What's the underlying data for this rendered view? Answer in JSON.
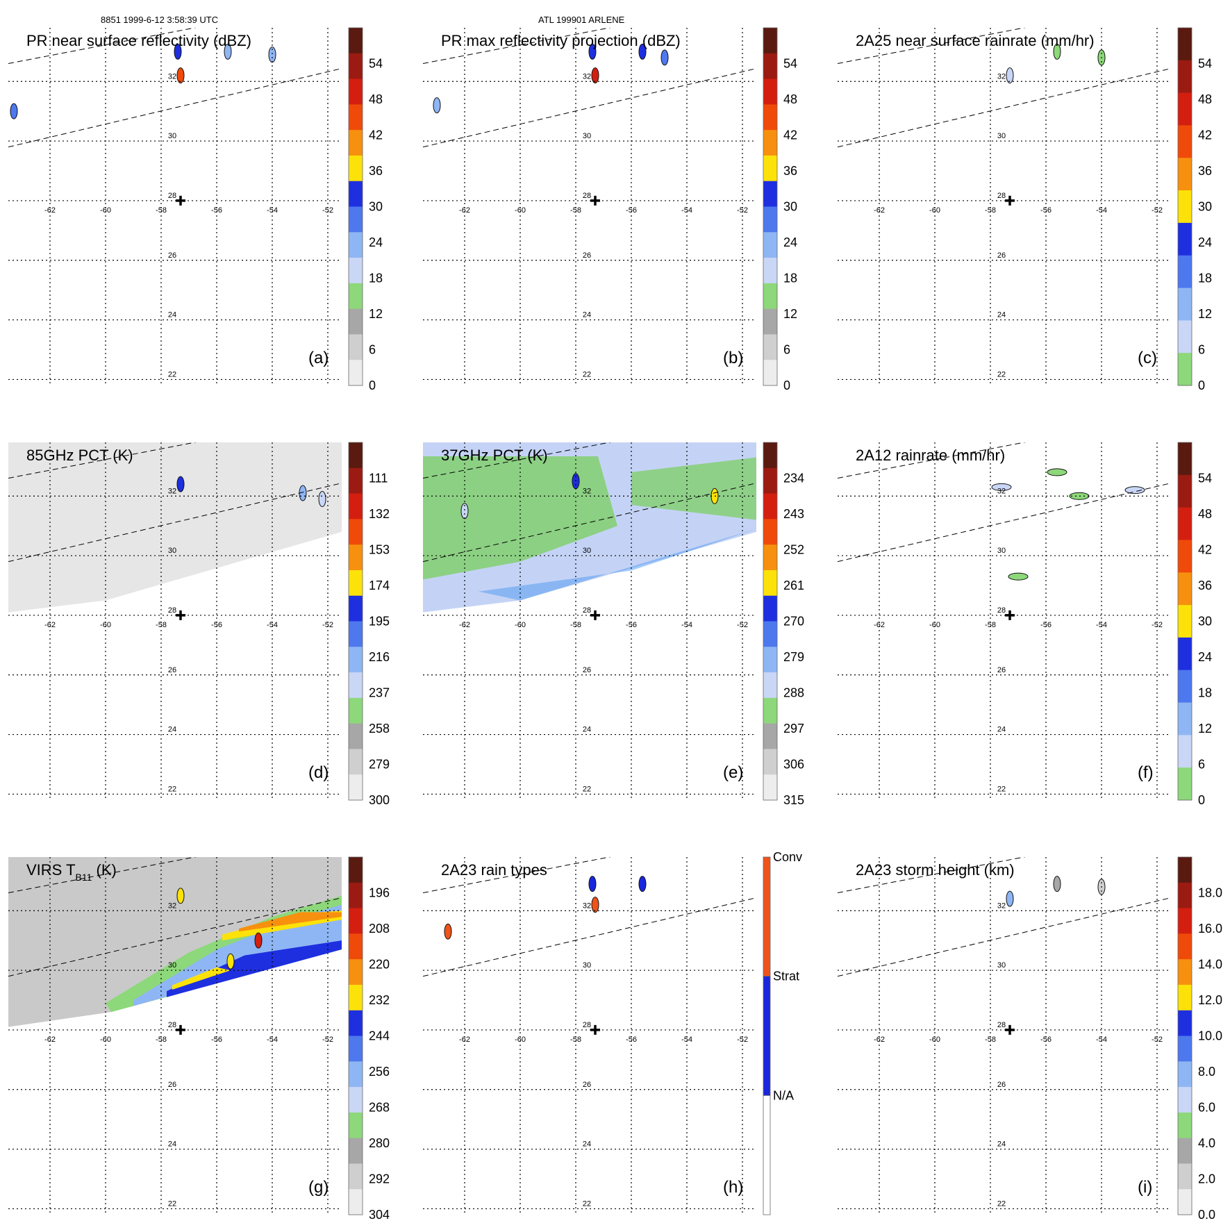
{
  "header": {
    "orbit_time": "8851 1999-6-12 3:58:39 UTC",
    "storm": "ATL 199901 ARLENE"
  },
  "chart_data": [
    {
      "type": "heatmap",
      "panel": "(a)",
      "title": "PR near surface reflectivity (dBZ)",
      "xlabel": "",
      "ylabel": "",
      "lon_ticks": [
        "-62",
        "-60",
        "-58",
        "-56",
        "-54",
        "-52"
      ],
      "lat_ticks": [
        "32",
        "30",
        "28",
        "26",
        "24",
        "22"
      ],
      "xlim": [
        -63.5,
        -51.5
      ],
      "ylim": [
        21.8,
        33.8
      ],
      "swath": "pr",
      "storm_center": {
        "lon": -57.3,
        "lat": 28.0
      },
      "colorbar": {
        "labels": [
          "54",
          "48",
          "42",
          "36",
          "30",
          "24",
          "18",
          "12",
          "6",
          "0"
        ],
        "colors": [
          "#5a1a10",
          "#9b1b12",
          "#d41f10",
          "#f04a0a",
          "#f7900e",
          "#fde20a",
          "#1e2fe0",
          "#4d78ee",
          "#8fb6f4",
          "#c9d6f6",
          "#8dd87a",
          "#a7a7a7",
          "#cfcfcf",
          "#ededed"
        ]
      },
      "data_features": [
        {
          "lon": -57.3,
          "lat": 32.2,
          "value": 45
        },
        {
          "lon": -57.4,
          "lat": 33.0,
          "value": 30
        },
        {
          "lon": -55.6,
          "lat": 33.0,
          "value": 24
        },
        {
          "lon": -54.0,
          "lat": 32.9,
          "value": 22
        },
        {
          "lon": -63.3,
          "lat": 31.0,
          "value": 28
        }
      ]
    },
    {
      "type": "heatmap",
      "panel": "(b)",
      "title": "PR max reflectivity projection (dBZ)",
      "xlabel": "",
      "ylabel": "",
      "lon_ticks": [
        "-62",
        "-60",
        "-58",
        "-56",
        "-54",
        "-52"
      ],
      "lat_ticks": [
        "32",
        "30",
        "28",
        "26",
        "24",
        "22"
      ],
      "xlim": [
        -63.5,
        -51.5
      ],
      "ylim": [
        21.8,
        33.8
      ],
      "swath": "pr",
      "storm_center": {
        "lon": -57.3,
        "lat": 28.0
      },
      "colorbar": {
        "labels": [
          "54",
          "48",
          "42",
          "36",
          "30",
          "24",
          "18",
          "12",
          "6",
          "0"
        ],
        "colors": [
          "#5a1a10",
          "#9b1b12",
          "#d41f10",
          "#f04a0a",
          "#f7900e",
          "#fde20a",
          "#1e2fe0",
          "#4d78ee",
          "#8fb6f4",
          "#c9d6f6",
          "#8dd87a",
          "#a7a7a7",
          "#cfcfcf",
          "#ededed"
        ]
      },
      "data_features": [
        {
          "lon": -57.3,
          "lat": 32.2,
          "value": 48
        },
        {
          "lon": -57.4,
          "lat": 33.0,
          "value": 33
        },
        {
          "lon": -55.6,
          "lat": 33.0,
          "value": 30
        },
        {
          "lon": -54.8,
          "lat": 32.8,
          "value": 26
        },
        {
          "lon": -63.0,
          "lat": 31.2,
          "value": 24
        }
      ]
    },
    {
      "type": "heatmap",
      "panel": "(c)",
      "title": "2A25 near surface rainrate (mm/hr)",
      "xlabel": "",
      "ylabel": "",
      "lon_ticks": [
        "-62",
        "-60",
        "-58",
        "-56",
        "-54",
        "-52"
      ],
      "lat_ticks": [
        "32",
        "30",
        "28",
        "26",
        "24",
        "22"
      ],
      "xlim": [
        -63.5,
        -51.5
      ],
      "ylim": [
        21.8,
        33.8
      ],
      "swath": "pr",
      "storm_center": {
        "lon": -57.3,
        "lat": 28.0
      },
      "colorbar": {
        "labels": [
          "54",
          "48",
          "42",
          "36",
          "30",
          "24",
          "18",
          "12",
          "6",
          "0"
        ],
        "colors": [
          "#5a1a10",
          "#9b1b12",
          "#d41f10",
          "#f04a0a",
          "#f7900e",
          "#fde20a",
          "#1e2fe0",
          "#4d78ee",
          "#8fb6f4",
          "#c9d6f6",
          "#8dd87a"
        ]
      },
      "data_features": [
        {
          "lon": -57.3,
          "lat": 32.2,
          "value": 10
        },
        {
          "lon": -55.6,
          "lat": 33.0,
          "value": 4
        },
        {
          "lon": -54.0,
          "lat": 32.8,
          "value": 3
        }
      ]
    },
    {
      "type": "heatmap",
      "panel": "(d)",
      "title": "85GHz PCT (K)",
      "xlabel": "",
      "ylabel": "",
      "lon_ticks": [
        "-62",
        "-60",
        "-58",
        "-56",
        "-54",
        "-52"
      ],
      "lat_ticks": [
        "32",
        "30",
        "28",
        "26",
        "24",
        "22"
      ],
      "xlim": [
        -63.5,
        -51.5
      ],
      "ylim": [
        21.8,
        33.8
      ],
      "swath": "tmi",
      "storm_center": {
        "lon": -57.3,
        "lat": 28.0
      },
      "colorbar": {
        "labels": [
          "111",
          "132",
          "153",
          "174",
          "195",
          "216",
          "237",
          "258",
          "279",
          "300"
        ],
        "colors": [
          "#5a1a10",
          "#9b1b12",
          "#d41f10",
          "#f04a0a",
          "#f7900e",
          "#fde20a",
          "#1e2fe0",
          "#4d78ee",
          "#8fb6f4",
          "#c9d6f6",
          "#8dd87a",
          "#a7a7a7",
          "#cfcfcf",
          "#ededed"
        ]
      },
      "field_base": "#e6e6e6",
      "data_features": [
        {
          "lon": -57.3,
          "lat": 32.4,
          "value": 200
        },
        {
          "lon": -52.9,
          "lat": 32.1,
          "value": 220
        },
        {
          "lon": -52.2,
          "lat": 31.9,
          "value": 240
        }
      ]
    },
    {
      "type": "heatmap",
      "panel": "(e)",
      "title": "37GHz PCT (K)",
      "xlabel": "",
      "ylabel": "",
      "lon_ticks": [
        "-62",
        "-60",
        "-58",
        "-56",
        "-54",
        "-52"
      ],
      "lat_ticks": [
        "32",
        "30",
        "28",
        "26",
        "24",
        "22"
      ],
      "xlim": [
        -63.5,
        -51.5
      ],
      "ylim": [
        21.8,
        33.8
      ],
      "swath": "tmi",
      "storm_center": {
        "lon": -57.3,
        "lat": 28.0
      },
      "colorbar": {
        "labels": [
          "234",
          "243",
          "252",
          "261",
          "270",
          "279",
          "288",
          "297",
          "306",
          "315"
        ],
        "colors": [
          "#5a1a10",
          "#9b1b12",
          "#d41f10",
          "#f04a0a",
          "#f7900e",
          "#fde20a",
          "#1e2fe0",
          "#4d78ee",
          "#8fb6f4",
          "#c9d6f6",
          "#8dd87a",
          "#a7a7a7",
          "#cfcfcf",
          "#ededed"
        ]
      },
      "field_base": "#c4d3f5",
      "data_features": [
        {
          "lon": -58.0,
          "lat": 32.5,
          "value": 272
        },
        {
          "lon": -53.0,
          "lat": 32.0,
          "value": 268
        },
        {
          "lon": -62.0,
          "lat": 31.5,
          "value": 287
        }
      ]
    },
    {
      "type": "heatmap",
      "panel": "(f)",
      "title": "2A12 rainrate (mm/hr)",
      "xlabel": "",
      "ylabel": "",
      "lon_ticks": [
        "-62",
        "-60",
        "-58",
        "-56",
        "-54",
        "-52"
      ],
      "lat_ticks": [
        "32",
        "30",
        "28",
        "26",
        "24",
        "22"
      ],
      "xlim": [
        -63.5,
        -51.5
      ],
      "ylim": [
        21.8,
        33.8
      ],
      "swath": "tmi",
      "storm_center": {
        "lon": -57.3,
        "lat": 28.0
      },
      "colorbar": {
        "labels": [
          "54",
          "48",
          "42",
          "36",
          "30",
          "24",
          "18",
          "12",
          "6",
          "0"
        ],
        "colors": [
          "#5a1a10",
          "#9b1b12",
          "#d41f10",
          "#f04a0a",
          "#f7900e",
          "#fde20a",
          "#1e2fe0",
          "#4d78ee",
          "#8fb6f4",
          "#c9d6f6",
          "#8dd87a"
        ]
      },
      "data_features": [
        {
          "lon": -57.6,
          "lat": 32.3,
          "value": 8
        },
        {
          "lon": -55.6,
          "lat": 32.8,
          "value": 4
        },
        {
          "lon": -54.8,
          "lat": 32.0,
          "value": 5
        },
        {
          "lon": -52.8,
          "lat": 32.2,
          "value": 9
        },
        {
          "lon": -57.0,
          "lat": 29.3,
          "value": 3
        }
      ]
    },
    {
      "type": "heatmap",
      "panel": "(g)",
      "title": "VIRS T",
      "title_subscript": "B11",
      "title_unit": " (K)",
      "xlabel": "",
      "ylabel": "",
      "lon_ticks": [
        "-62",
        "-60",
        "-58",
        "-56",
        "-54",
        "-52"
      ],
      "lat_ticks": [
        "32",
        "30",
        "28",
        "26",
        "24",
        "22"
      ],
      "xlim": [
        -63.5,
        -51.5
      ],
      "ylim": [
        21.8,
        33.8
      ],
      "swath": "virs",
      "storm_center": {
        "lon": -57.3,
        "lat": 28.0
      },
      "colorbar": {
        "labels": [
          "196",
          "208",
          "220",
          "232",
          "244",
          "256",
          "268",
          "280",
          "292",
          "304"
        ],
        "colors": [
          "#5a1a10",
          "#9b1b12",
          "#d41f10",
          "#f04a0a",
          "#f7900e",
          "#fde20a",
          "#1e2fe0",
          "#4d78ee",
          "#8fb6f4",
          "#c9d6f6",
          "#8dd87a",
          "#a7a7a7",
          "#cfcfcf",
          "#ededed"
        ]
      },
      "field_base": "#c9c9c9",
      "data_features": [
        {
          "lon": -54.5,
          "lat": 31.0,
          "value": 215
        },
        {
          "lon": -55.5,
          "lat": 30.3,
          "value": 235
        },
        {
          "lon": -57.3,
          "lat": 32.5,
          "value": 240
        }
      ]
    },
    {
      "type": "heatmap",
      "panel": "(h)",
      "title": "2A23 rain types",
      "xlabel": "",
      "ylabel": "",
      "lon_ticks": [
        "-62",
        "-60",
        "-58",
        "-56",
        "-54",
        "-52"
      ],
      "lat_ticks": [
        "32",
        "30",
        "28",
        "26",
        "24",
        "22"
      ],
      "xlim": [
        -63.5,
        -51.5
      ],
      "ylim": [
        21.8,
        33.8
      ],
      "swath": "pr",
      "storm_center": {
        "lon": -57.3,
        "lat": 28.0
      },
      "categorical_colorbar": {
        "labels": [
          "Conv",
          "Strat",
          "N/A"
        ],
        "colors": [
          "#f0531a",
          "#1a27dc",
          "#ffffff"
        ]
      },
      "data_features": [
        {
          "lon": -57.3,
          "lat": 32.2,
          "category": "Conv"
        },
        {
          "lon": -57.4,
          "lat": 32.9,
          "category": "Strat"
        },
        {
          "lon": -55.6,
          "lat": 32.9,
          "category": "Strat"
        },
        {
          "lon": -62.6,
          "lat": 31.3,
          "category": "Conv"
        }
      ]
    },
    {
      "type": "heatmap",
      "panel": "(i)",
      "title": "2A23 storm height (km)",
      "xlabel": "",
      "ylabel": "",
      "lon_ticks": [
        "-62",
        "-60",
        "-58",
        "-56",
        "-54",
        "-52"
      ],
      "lat_ticks": [
        "32",
        "30",
        "28",
        "26",
        "24",
        "22"
      ],
      "xlim": [
        -63.5,
        -51.5
      ],
      "ylim": [
        21.8,
        33.8
      ],
      "swath": "pr",
      "storm_center": {
        "lon": -57.3,
        "lat": 28.0
      },
      "colorbar": {
        "labels": [
          "18.0",
          "16.0",
          "14.0",
          "12.0",
          "10.0",
          "8.0",
          "6.0",
          "4.0",
          "2.0",
          "0.0"
        ],
        "colors": [
          "#5a1a10",
          "#9b1b12",
          "#d41f10",
          "#f04a0a",
          "#f7900e",
          "#fde20a",
          "#1e2fe0",
          "#4d78ee",
          "#8fb6f4",
          "#c9d6f6",
          "#8dd87a",
          "#a7a7a7",
          "#cfcfcf",
          "#ededed"
        ]
      },
      "data_features": [
        {
          "lon": -57.3,
          "lat": 32.4,
          "value": 7.5
        },
        {
          "lon": -55.6,
          "lat": 32.9,
          "value": 3.0
        },
        {
          "lon": -54.0,
          "lat": 32.8,
          "value": 2.5
        }
      ]
    }
  ]
}
